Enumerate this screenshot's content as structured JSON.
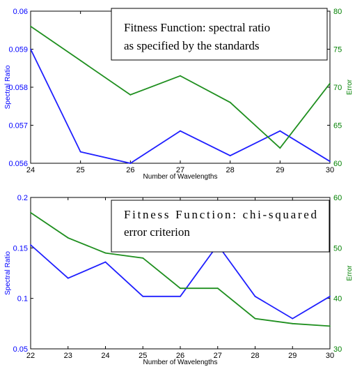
{
  "chart_data": [
    {
      "type": "line",
      "annotation_lines": [
        "Fitness Function: spectral ratio",
        "as specified by the standards"
      ],
      "xlabel": "Number of Wavelengths",
      "ylabel_left": "Spectral Ratio",
      "ylabel_right": "Error",
      "x": [
        24,
        25,
        26,
        27,
        28,
        29,
        30
      ],
      "xlim": [
        24,
        30
      ],
      "ylim_left": [
        0.056,
        0.06
      ],
      "ylim_right": [
        60,
        80
      ],
      "yticks_left": [
        "0.056",
        "0.057",
        "0.058",
        "0.059",
        "0.06"
      ],
      "yticks_right": [
        "60",
        "65",
        "70",
        "75",
        "80"
      ],
      "left_color": "#0000ff",
      "right_color": "#008000",
      "series": [
        {
          "axis": "left",
          "color": "#1f1fff",
          "values": [
            0.059,
            0.0563,
            0.056,
            0.05685,
            0.0562,
            0.05685,
            0.05605
          ]
        },
        {
          "axis": "right",
          "color": "#1f8f1f",
          "values": [
            78,
            73.5,
            69,
            71.5,
            68,
            62,
            70.5
          ]
        }
      ]
    },
    {
      "type": "line",
      "annotation_lines": [
        "Fitness Function: chi-squared",
        "error criterion"
      ],
      "xlabel": "Number of Wavelengths",
      "ylabel_left": "Spectral Ratio",
      "ylabel_right": "Error",
      "x": [
        22,
        23,
        24,
        25,
        26,
        27,
        28,
        29,
        30
      ],
      "xlim": [
        22,
        30
      ],
      "ylim_left": [
        0.05,
        0.2
      ],
      "ylim_right": [
        30,
        60
      ],
      "yticks_left": [
        "0.05",
        "0.1",
        "0.15",
        "0.2"
      ],
      "yticks_right": [
        "30",
        "40",
        "50",
        "60"
      ],
      "left_color": "#0000ff",
      "right_color": "#008000",
      "series": [
        {
          "axis": "left",
          "color": "#1f1fff",
          "values": [
            0.153,
            0.12,
            0.136,
            0.102,
            0.102,
            0.153,
            0.102,
            0.08,
            0.102
          ]
        },
        {
          "axis": "right",
          "color": "#1f8f1f",
          "values": [
            57,
            52,
            49,
            48,
            42,
            42,
            36,
            35,
            34.5
          ]
        }
      ]
    }
  ]
}
